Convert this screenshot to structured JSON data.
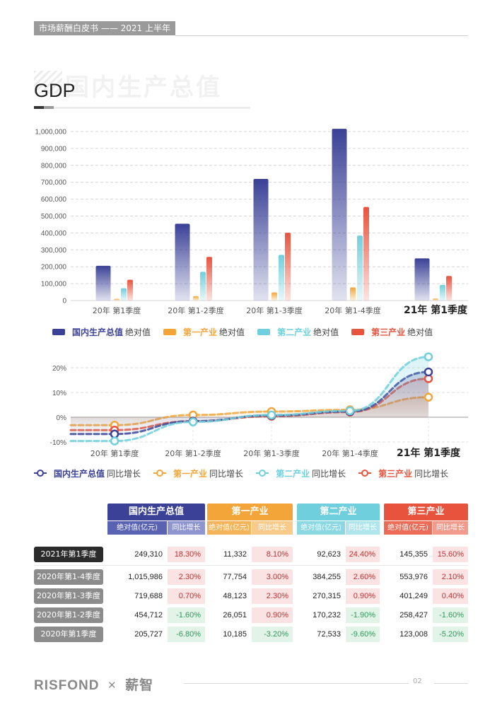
{
  "header": {
    "tag": "市场薪酬白皮书 —— 2021 上半年"
  },
  "title": {
    "watermark": "国内生产总值",
    "main": "GDP"
  },
  "colors": {
    "gdp": "#3a4196",
    "primary": "#f4a53a",
    "secondary": "#6fcfdc",
    "tertiary": "#e8533d"
  },
  "chart_data": [
    {
      "type": "bar",
      "categories": [
        "20年 第1季度",
        "20年 第1-2季度",
        "20年 第1-3季度",
        "20年 第1-4季度",
        "21年 第1季度"
      ],
      "series": [
        {
          "name": "国内生产总值",
          "values": [
            205727,
            454712,
            719688,
            1015986,
            249310
          ]
        },
        {
          "name": "第一产业",
          "values": [
            10185,
            26051,
            48123,
            77754,
            11332
          ]
        },
        {
          "name": "第二产业",
          "values": [
            72533,
            170232,
            270315,
            384255,
            92623
          ]
        },
        {
          "name": "第三产业",
          "values": [
            123008,
            258427,
            401249,
            553976,
            145355
          ]
        }
      ],
      "yticks": [
        "0",
        "100,000",
        "200,000",
        "300,000",
        "400,000",
        "500,000",
        "600,000",
        "700,000",
        "800,000",
        "900,000",
        "1,000,000"
      ],
      "ylim": [
        0,
        1000000
      ],
      "grid": true,
      "legend": [
        "国内生产总值",
        "绝对值"
      ],
      "legend_suffix": "绝对值"
    },
    {
      "type": "line",
      "categories": [
        "20年 第1季度",
        "20年 第1-2季度",
        "20年 第1-3季度",
        "20年 第1-4季度",
        "21年 第1季度"
      ],
      "series": [
        {
          "name": "国内生产总值",
          "values": [
            -6.8,
            -1.6,
            0.7,
            2.3,
            18.3
          ]
        },
        {
          "name": "第一产业",
          "values": [
            -3.2,
            0.9,
            2.3,
            3.0,
            8.1
          ]
        },
        {
          "name": "第二产业",
          "values": [
            -9.6,
            -1.9,
            0.9,
            2.6,
            24.4
          ]
        },
        {
          "name": "第三产业",
          "values": [
            -5.2,
            -1.6,
            0.4,
            2.1,
            15.6
          ]
        }
      ],
      "yticks": [
        "-10%",
        "0%",
        "10%",
        "20%"
      ],
      "ylim": [
        -11,
        25
      ],
      "grid": true,
      "legend_suffix": "同比增长"
    }
  ],
  "legend1": [
    {
      "name": "国内生产总值",
      "suffix": "绝对值"
    },
    {
      "name": "第一产业",
      "suffix": "绝对值"
    },
    {
      "name": "第二产业",
      "suffix": "绝对值"
    },
    {
      "name": "第三产业",
      "suffix": "绝对值"
    }
  ],
  "legend2": [
    {
      "name": "国内生产总值",
      "suffix": "同比增长"
    },
    {
      "name": "第一产业",
      "suffix": "同比增长"
    },
    {
      "name": "第二产业",
      "suffix": "同比增长"
    },
    {
      "name": "第三产业",
      "suffix": "同比增长"
    }
  ],
  "table": {
    "groups": [
      "国内生产总值",
      "第一产业",
      "第二产业",
      "第三产业"
    ],
    "subheads": [
      "绝对值(亿元)",
      "同比增长"
    ],
    "rows": [
      {
        "label": "2021年第1季度",
        "cells": [
          "249,310",
          "18.30%",
          "11,332",
          "8.10%",
          "92,623",
          "24.40%",
          "145,355",
          "15.60%"
        ]
      },
      {
        "label": "2020年第1-4季度",
        "cells": [
          "1,015,986",
          "2.30%",
          "77,754",
          "3.00%",
          "384,255",
          "2.60%",
          "553,976",
          "2.10%"
        ]
      },
      {
        "label": "2020年第1-3季度",
        "cells": [
          "719,688",
          "0.70%",
          "48,123",
          "2.30%",
          "270,315",
          "0.90%",
          "401,249",
          "0.40%"
        ]
      },
      {
        "label": "2020年第1-2季度",
        "cells": [
          "454,712",
          "-1.60%",
          "26,051",
          "0.90%",
          "170,232",
          "-1.90%",
          "258,427",
          "-1.60%"
        ]
      },
      {
        "label": "2020年第1季度",
        "cells": [
          "205,727",
          "-6.80%",
          "10,185",
          "-3.20%",
          "72,533",
          "-9.60%",
          "123,008",
          "-5.20%"
        ]
      }
    ]
  },
  "footer": {
    "brand": "RISFOND",
    "separator": "×",
    "partner": "薪智",
    "page": "02"
  }
}
